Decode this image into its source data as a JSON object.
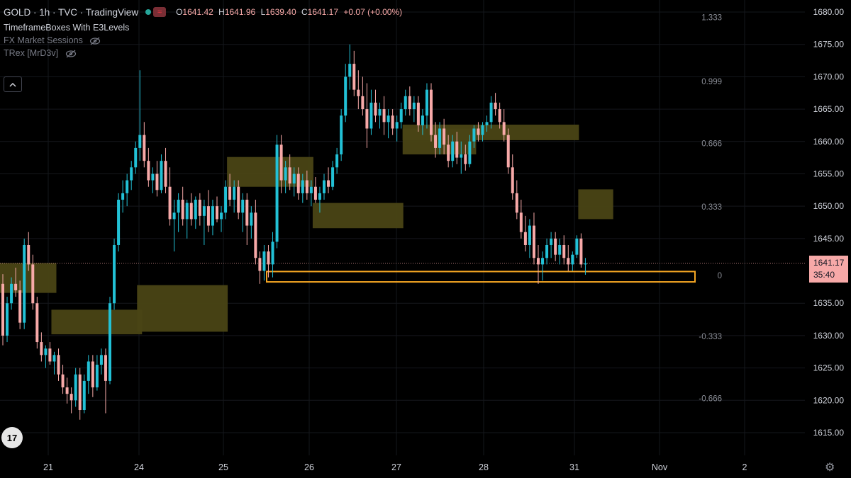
{
  "header": {
    "symbol": "GOLD · 1h · TVC · TradingView",
    "ohlc": [
      {
        "k": "O",
        "v": "1641.42"
      },
      {
        "k": "H",
        "v": "1641.96"
      },
      {
        "k": "L",
        "v": "1639.40"
      },
      {
        "k": "C",
        "v": "1641.17"
      }
    ],
    "change": "+0.07 (+0.00%)",
    "wave_icon": "≈"
  },
  "indicators": [
    {
      "name": "TimeframeBoxes With E3Levels",
      "hidden": false
    },
    {
      "name": "FX Market Sessions",
      "hidden": true
    },
    {
      "name": "TRex [MrD3v]",
      "hidden": true
    }
  ],
  "collapse_icon": "chevron-up-icon",
  "logo_text": "17",
  "last_price": {
    "price": "1641.17",
    "countdown": "35:40"
  },
  "colors": {
    "up": "#22c1d6",
    "down": "#f7a9a8",
    "box": "#4a4415",
    "highlight": "#f5a623",
    "background": "#000000"
  },
  "chart_data": {
    "type": "candlestick",
    "symbol": "GOLD",
    "interval": "1h",
    "y_ticks": [
      "1680.00",
      "1675.00",
      "1670.00",
      "1665.00",
      "1660.00",
      "1655.00",
      "1650.00",
      "1645.00",
      "1635.00",
      "1630.00",
      "1625.00",
      "1620.00",
      "1615.00"
    ],
    "y_tick_values": [
      1680,
      1675,
      1670,
      1665,
      1660,
      1655,
      1650,
      1645,
      1635,
      1630,
      1625,
      1620,
      1615
    ],
    "ylim": [
      1612.5,
      1681.5
    ],
    "x_ticks": [
      "21",
      "24",
      "25",
      "26",
      "27",
      "28",
      "31",
      "Nov",
      "2"
    ],
    "level_labels": [
      {
        "text": "1.333",
        "price": 1679.2
      },
      {
        "text": "0.999",
        "price": 1669.3
      },
      {
        "text": "0.666",
        "price": 1659.7
      },
      {
        "text": "0.333",
        "price": 1649.9
      },
      {
        "text": "0",
        "price": 1639.3
      },
      {
        "text": "-0.333",
        "price": 1629.9
      },
      {
        "text": "-0.666",
        "price": 1620.3
      }
    ],
    "last_price": 1641.17,
    "highlight_zone": {
      "low": 1638.3,
      "high": 1639.9
    },
    "session_boxes": [
      {
        "start": 0,
        "end": 12,
        "low": 1636.6,
        "high": 1641.2
      },
      {
        "start": 12,
        "end": 32,
        "low": 1630.2,
        "high": 1634.0
      },
      {
        "start": 32,
        "end": 52,
        "low": 1630.6,
        "high": 1637.8
      },
      {
        "start": 53,
        "end": 72,
        "low": 1653.0,
        "high": 1657.6
      },
      {
        "start": 73,
        "end": 93,
        "low": 1646.6,
        "high": 1650.5
      },
      {
        "start": 94,
        "end": 134,
        "low": 1660.2,
        "high": 1662.6
      },
      {
        "start": 94,
        "end": 110,
        "low": 1658.0,
        "high": 1662.0
      },
      {
        "start": 135,
        "end": 142,
        "low": 1648.0,
        "high": 1652.6
      }
    ],
    "candles": [
      [
        1638.0,
        1639.5,
        1628.5,
        1630.0
      ],
      [
        1630.0,
        1636.0,
        1629.0,
        1635.0
      ],
      [
        1635.0,
        1639.0,
        1634.0,
        1638.0
      ],
      [
        1638.0,
        1640.5,
        1636.0,
        1637.0
      ],
      [
        1637.0,
        1638.5,
        1631.0,
        1632.0
      ],
      [
        1632.0,
        1645.0,
        1631.0,
        1644.0
      ],
      [
        1644.0,
        1646.0,
        1640.0,
        1641.0
      ],
      [
        1641.0,
        1642.5,
        1634.0,
        1635.0
      ],
      [
        1635.0,
        1636.0,
        1628.0,
        1629.0
      ],
      [
        1629.0,
        1630.5,
        1626.0,
        1627.0
      ],
      [
        1627.0,
        1628.5,
        1625.0,
        1628.0
      ],
      [
        1628.0,
        1629.0,
        1625.5,
        1626.0
      ],
      [
        1626.0,
        1627.5,
        1624.0,
        1627.0
      ],
      [
        1627.0,
        1628.0,
        1623.0,
        1624.0
      ],
      [
        1624.0,
        1625.5,
        1621.0,
        1622.0
      ],
      [
        1622.0,
        1623.5,
        1619.5,
        1621.0
      ],
      [
        1621.0,
        1622.0,
        1618.0,
        1620.0
      ],
      [
        1620.0,
        1625.0,
        1619.0,
        1624.0
      ],
      [
        1624.0,
        1625.0,
        1617.0,
        1618.5
      ],
      [
        1618.5,
        1624.0,
        1618.0,
        1623.0
      ],
      [
        1623.0,
        1627.0,
        1621.0,
        1626.0
      ],
      [
        1626.0,
        1627.0,
        1620.5,
        1622.0
      ],
      [
        1622.0,
        1627.0,
        1621.5,
        1625.5
      ],
      [
        1625.5,
        1628.0,
        1624.0,
        1627.0
      ],
      [
        1627.0,
        1628.0,
        1618.0,
        1623.0
      ],
      [
        1623.0,
        1636.0,
        1622.5,
        1635.0
      ],
      [
        1635.0,
        1645.0,
        1634.0,
        1644.0
      ],
      [
        1644.0,
        1652.0,
        1643.0,
        1651.0
      ],
      [
        1651.0,
        1654.0,
        1649.0,
        1652.0
      ],
      [
        1652.0,
        1655.0,
        1650.0,
        1654.0
      ],
      [
        1654.0,
        1657.0,
        1652.5,
        1656.0
      ],
      [
        1656.0,
        1660.0,
        1655.0,
        1659.0
      ],
      [
        1659.0,
        1671.0,
        1657.0,
        1661.0
      ],
      [
        1661.0,
        1663.0,
        1656.0,
        1657.0
      ],
      [
        1657.0,
        1659.0,
        1653.0,
        1654.0
      ],
      [
        1654.0,
        1656.0,
        1652.0,
        1655.0
      ],
      [
        1655.0,
        1657.0,
        1651.5,
        1652.5
      ],
      [
        1652.5,
        1658.0,
        1652.0,
        1657.0
      ],
      [
        1657.0,
        1659.0,
        1652.0,
        1653.0
      ],
      [
        1653.0,
        1656.0,
        1647.0,
        1648.0
      ],
      [
        1648.0,
        1651.0,
        1643.0,
        1649.0
      ],
      [
        1649.0,
        1652.0,
        1646.0,
        1651.0
      ],
      [
        1651.0,
        1653.0,
        1647.0,
        1648.0
      ],
      [
        1648.0,
        1651.0,
        1645.0,
        1650.5
      ],
      [
        1650.5,
        1652.0,
        1647.0,
        1648.0
      ],
      [
        1648.0,
        1651.5,
        1646.5,
        1651.0
      ],
      [
        1651.0,
        1652.0,
        1647.0,
        1648.5
      ],
      [
        1648.5,
        1651.0,
        1644.0,
        1650.0
      ],
      [
        1650.0,
        1652.5,
        1646.0,
        1647.0
      ],
      [
        1647.0,
        1651.0,
        1645.5,
        1650.0
      ],
      [
        1650.0,
        1651.5,
        1647.5,
        1648.0
      ],
      [
        1648.0,
        1650.0,
        1646.0,
        1649.0
      ],
      [
        1649.0,
        1654.0,
        1648.0,
        1653.0
      ],
      [
        1653.0,
        1655.0,
        1650.0,
        1651.0
      ],
      [
        1651.0,
        1654.0,
        1649.0,
        1653.0
      ],
      [
        1653.0,
        1654.0,
        1648.0,
        1649.0
      ],
      [
        1649.0,
        1652.0,
        1646.0,
        1651.0
      ],
      [
        1651.0,
        1652.0,
        1644.0,
        1647.0
      ],
      [
        1647.0,
        1650.0,
        1645.0,
        1649.0
      ],
      [
        1649.0,
        1651.0,
        1641.0,
        1642.0
      ],
      [
        1642.0,
        1643.0,
        1638.0,
        1640.0
      ],
      [
        1640.0,
        1644.0,
        1638.5,
        1643.0
      ],
      [
        1643.0,
        1644.0,
        1639.0,
        1641.0
      ],
      [
        1641.0,
        1646.0,
        1639.0,
        1644.5
      ],
      [
        1644.5,
        1661.0,
        1643.5,
        1659.5
      ],
      [
        1659.5,
        1661.0,
        1652.0,
        1654.0
      ],
      [
        1654.0,
        1657.0,
        1652.0,
        1656.0
      ],
      [
        1656.0,
        1658.0,
        1652.5,
        1653.5
      ],
      [
        1653.5,
        1656.0,
        1651.5,
        1655.0
      ],
      [
        1655.0,
        1656.0,
        1651.0,
        1652.0
      ],
      [
        1652.0,
        1655.0,
        1650.5,
        1654.0
      ],
      [
        1654.0,
        1655.5,
        1651.0,
        1652.0
      ],
      [
        1652.0,
        1654.0,
        1650.0,
        1653.0
      ],
      [
        1653.0,
        1654.5,
        1650.5,
        1651.0
      ],
      [
        1651.0,
        1653.0,
        1649.0,
        1652.0
      ],
      [
        1652.0,
        1655.0,
        1651.0,
        1654.0
      ],
      [
        1654.0,
        1656.0,
        1652.0,
        1653.0
      ],
      [
        1653.0,
        1657.0,
        1652.5,
        1656.0
      ],
      [
        1656.0,
        1659.0,
        1655.0,
        1658.0
      ],
      [
        1658.0,
        1665.0,
        1657.0,
        1664.0
      ],
      [
        1664.0,
        1672.0,
        1663.0,
        1670.0
      ],
      [
        1670.0,
        1675.0,
        1668.0,
        1672.0
      ],
      [
        1672.0,
        1674.0,
        1667.0,
        1668.0
      ],
      [
        1668.0,
        1671.0,
        1665.0,
        1667.0
      ],
      [
        1667.0,
        1670.0,
        1664.0,
        1665.0
      ],
      [
        1665.0,
        1669.0,
        1659.0,
        1662.0
      ],
      [
        1662.0,
        1668.0,
        1661.0,
        1666.0
      ],
      [
        1666.0,
        1668.0,
        1663.0,
        1664.0
      ],
      [
        1664.0,
        1666.0,
        1662.0,
        1665.0
      ],
      [
        1665.0,
        1667.0,
        1661.0,
        1663.0
      ],
      [
        1663.0,
        1665.0,
        1660.5,
        1664.0
      ],
      [
        1664.0,
        1665.0,
        1661.0,
        1662.0
      ],
      [
        1662.0,
        1664.0,
        1660.0,
        1663.0
      ],
      [
        1663.0,
        1666.0,
        1662.0,
        1665.0
      ],
      [
        1665.0,
        1668.0,
        1664.0,
        1667.0
      ],
      [
        1667.0,
        1668.5,
        1664.0,
        1665.0
      ],
      [
        1665.0,
        1667.0,
        1663.0,
        1666.0
      ],
      [
        1666.0,
        1667.0,
        1661.5,
        1662.5
      ],
      [
        1662.5,
        1665.0,
        1661.0,
        1664.0
      ],
      [
        1664.0,
        1669.0,
        1662.0,
        1668.0
      ],
      [
        1668.0,
        1669.0,
        1660.0,
        1661.0
      ],
      [
        1661.0,
        1663.0,
        1657.5,
        1659.0
      ],
      [
        1659.0,
        1663.0,
        1658.0,
        1662.0
      ],
      [
        1662.0,
        1663.5,
        1658.0,
        1659.5
      ],
      [
        1659.5,
        1661.0,
        1656.0,
        1657.0
      ],
      [
        1657.0,
        1661.0,
        1656.0,
        1660.0
      ],
      [
        1660.0,
        1661.5,
        1656.5,
        1657.5
      ],
      [
        1657.5,
        1660.0,
        1655.0,
        1658.0
      ],
      [
        1658.0,
        1659.5,
        1655.5,
        1656.5
      ],
      [
        1656.5,
        1661.0,
        1656.0,
        1660.0
      ],
      [
        1660.0,
        1662.5,
        1659.0,
        1662.0
      ],
      [
        1662.0,
        1663.0,
        1660.0,
        1661.0
      ],
      [
        1661.0,
        1663.0,
        1660.0,
        1662.5
      ],
      [
        1662.5,
        1664.0,
        1661.5,
        1663.0
      ],
      [
        1663.0,
        1667.0,
        1662.0,
        1666.0
      ],
      [
        1666.0,
        1667.5,
        1664.0,
        1665.0
      ],
      [
        1665.0,
        1666.0,
        1662.0,
        1663.0
      ],
      [
        1663.0,
        1665.0,
        1660.0,
        1661.0
      ],
      [
        1661.0,
        1662.0,
        1655.0,
        1656.0
      ],
      [
        1656.0,
        1658.0,
        1651.0,
        1652.0
      ],
      [
        1652.0,
        1654.0,
        1648.0,
        1649.0
      ],
      [
        1649.0,
        1651.0,
        1645.0,
        1646.0
      ],
      [
        1646.0,
        1648.5,
        1643.0,
        1644.0
      ],
      [
        1644.0,
        1648.0,
        1642.0,
        1647.0
      ],
      [
        1647.0,
        1649.0,
        1641.0,
        1642.0
      ],
      [
        1642.0,
        1644.0,
        1638.0,
        1641.0
      ],
      [
        1641.0,
        1643.0,
        1638.5,
        1642.0
      ],
      [
        1642.0,
        1645.0,
        1641.0,
        1644.0
      ],
      [
        1644.0,
        1646.0,
        1642.0,
        1645.0
      ],
      [
        1645.0,
        1646.0,
        1641.5,
        1642.5
      ],
      [
        1642.5,
        1645.0,
        1641.0,
        1644.0
      ],
      [
        1644.0,
        1645.5,
        1641.0,
        1642.0
      ],
      [
        1642.0,
        1644.0,
        1640.0,
        1641.0
      ],
      [
        1641.0,
        1643.0,
        1640.0,
        1642.5
      ],
      [
        1642.5,
        1645.5,
        1642.0,
        1645.0
      ],
      [
        1645.0,
        1645.8,
        1640.5,
        1641.0
      ],
      [
        1641.0,
        1642.0,
        1639.4,
        1641.17
      ]
    ]
  }
}
